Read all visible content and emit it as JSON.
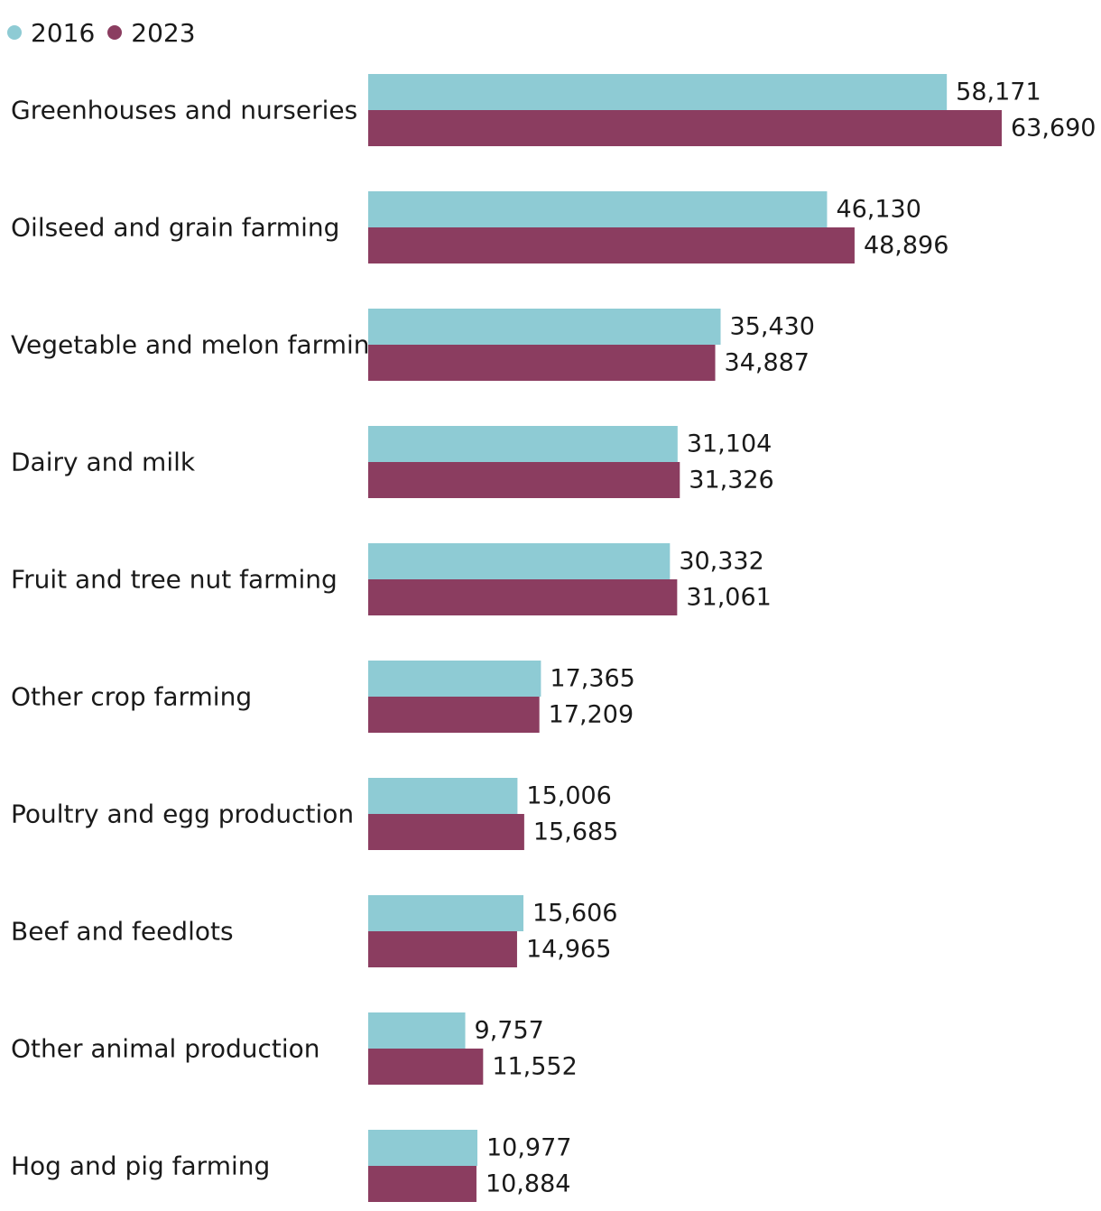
{
  "chart_data": {
    "type": "bar",
    "orientation": "horizontal",
    "legend_position": "top-left",
    "grid": false,
    "xlim": [
      0,
      63690
    ],
    "categories": [
      "Greenhouses and nurseries",
      "Oilseed and grain farming",
      "Vegetable and melon farming",
      "Dairy and milk",
      "Fruit and tree nut farming",
      "Other crop farming",
      "Poultry and egg production",
      "Beef and feedlots",
      "Other animal production",
      "Hog and pig farming"
    ],
    "series": [
      {
        "name": "2016",
        "color": "#8ecbd4",
        "values": [
          58171,
          46130,
          35430,
          31104,
          30332,
          17365,
          15006,
          15606,
          9757,
          10977
        ],
        "labels": [
          "58,171",
          "46,130",
          "35,430",
          "31,104",
          "30,332",
          "17,365",
          "15,006",
          "15,606",
          "9,757",
          "10,977"
        ]
      },
      {
        "name": "2023",
        "color": "#8b3d60",
        "values": [
          63690,
          48896,
          34887,
          31326,
          31061,
          17209,
          15685,
          14965,
          11552,
          10884
        ],
        "labels": [
          "63,690",
          "48,896",
          "34,887",
          "31,326",
          "31,061",
          "17,209",
          "15,685",
          "14,965",
          "11,552",
          "10,884"
        ]
      }
    ]
  }
}
